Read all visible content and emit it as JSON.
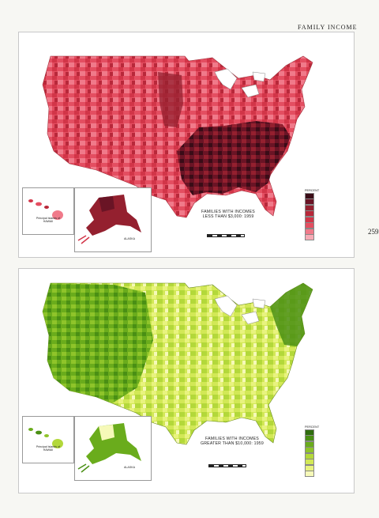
{
  "header": {
    "title": "FAMILY INCOME"
  },
  "page_number": "259",
  "maps": [
    {
      "id": "low-income",
      "title_line1": "FAMILIES WITH INCOMES",
      "title_line2": "LESS THAN $3,000: 1959",
      "inset_hawaii": {
        "line1": "Principal Islands of",
        "line2": "HAWAII"
      },
      "inset_alaska": "ALASKA",
      "legend_title": "PERCENT",
      "colors": [
        "#3a0c17",
        "#6a1425",
        "#94202f",
        "#b8283a",
        "#d23548",
        "#e44e61",
        "#f07a8a",
        "#f7aab5"
      ],
      "sea_color": "#ffffff",
      "land_base": "#e44e61",
      "land_dark": "#5a1020",
      "land_light": "#f6a3b0"
    },
    {
      "id": "high-income",
      "title_line1": "FAMILIES WITH INCOMES",
      "title_line2": "GREATER THAN $10,000: 1959",
      "inset_hawaii": {
        "line1": "Principal Islands of",
        "line2": "HAWAII"
      },
      "inset_alaska": "ALASKA",
      "legend_title": "PERCENT",
      "colors": [
        "#2f6d0e",
        "#4a8f14",
        "#6aac1c",
        "#8fc42a",
        "#b3d83a",
        "#d2e856",
        "#e8f37e",
        "#f6f9b8"
      ],
      "sea_color": "#ffffff",
      "land_base": "#b3d83a",
      "land_dark": "#3f7f10",
      "land_light": "#eef5a0"
    }
  ]
}
